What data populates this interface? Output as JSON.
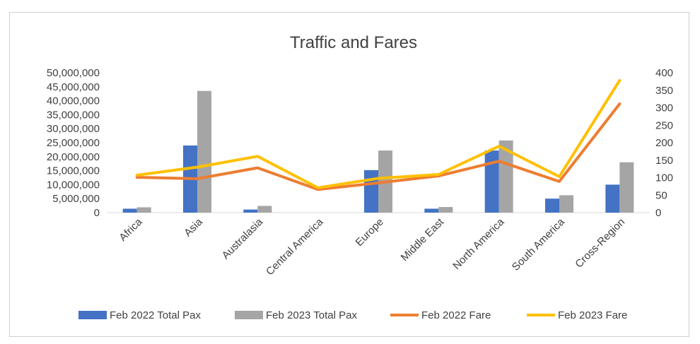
{
  "chart_data": {
    "type": "bar",
    "title": "Traffic and Fares",
    "categories": [
      "Africa",
      "Asia",
      "Australasia",
      "Central America",
      "Europe",
      "Middle East",
      "North America",
      "South America",
      "Cross-Region"
    ],
    "series": [
      {
        "name": "Feb 2022 Total Pax",
        "type": "bar",
        "axis": "left",
        "color": "#4472C4",
        "values": [
          1400000,
          24000000,
          1100000,
          0,
          15200000,
          1400000,
          22200000,
          5000000,
          10000000
        ]
      },
      {
        "name": "Feb 2023 Total Pax",
        "type": "bar",
        "axis": "left",
        "color": "#A5A5A5",
        "values": [
          1900000,
          43500000,
          2400000,
          0,
          22200000,
          2000000,
          25800000,
          6200000,
          18000000
        ]
      },
      {
        "name": "Feb 2022 Fare",
        "type": "line",
        "axis": "right",
        "color": "#ED7D31",
        "values": [
          101,
          97,
          128,
          66,
          85,
          105,
          147,
          89,
          311
        ]
      },
      {
        "name": "Feb 2023 Fare",
        "type": "line",
        "axis": "right",
        "color": "#FFC000",
        "values": [
          107,
          130,
          161,
          71,
          98,
          109,
          190,
          103,
          378
        ]
      }
    ],
    "y_left": {
      "min": 0,
      "max": 50000000,
      "step": 5000000,
      "ticks": [
        "0",
        "5,000,000",
        "10,000,000",
        "15,000,000",
        "20,000,000",
        "25,000,000",
        "30,000,000",
        "35,000,000",
        "40,000,000",
        "45,000,000",
        "50,000,000"
      ]
    },
    "y_right": {
      "min": 0,
      "max": 400,
      "step": 50,
      "ticks": [
        "0",
        "50",
        "100",
        "150",
        "200",
        "250",
        "300",
        "350",
        "400"
      ]
    },
    "grid": false,
    "legend_position": "bottom"
  }
}
